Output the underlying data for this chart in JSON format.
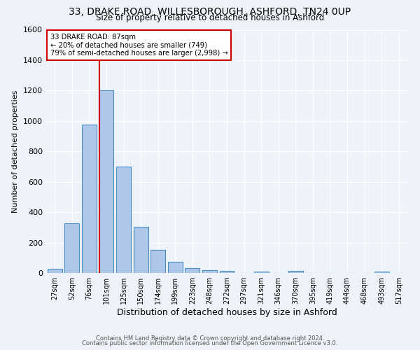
{
  "title_line1": "33, DRAKE ROAD, WILLESBOROUGH, ASHFORD, TN24 0UP",
  "title_line2": "Size of property relative to detached houses in Ashford",
  "xlabel": "Distribution of detached houses by size in Ashford",
  "ylabel": "Number of detached properties",
  "footnote1": "Contains HM Land Registry data © Crown copyright and database right 2024.",
  "footnote2": "Contains public sector information licensed under the Open Government Licence v3.0.",
  "bar_labels": [
    "27sqm",
    "52sqm",
    "76sqm",
    "101sqm",
    "125sqm",
    "150sqm",
    "174sqm",
    "199sqm",
    "223sqm",
    "248sqm",
    "272sqm",
    "297sqm",
    "321sqm",
    "346sqm",
    "370sqm",
    "395sqm",
    "419sqm",
    "444sqm",
    "468sqm",
    "493sqm",
    "517sqm"
  ],
  "bar_values": [
    27,
    325,
    975,
    1200,
    700,
    305,
    153,
    75,
    30,
    20,
    13,
    0,
    10,
    0,
    13,
    0,
    0,
    0,
    0,
    10,
    0
  ],
  "bar_color": "#aec6e8",
  "bar_edge_color": "#4a90c4",
  "ylim": [
    0,
    1600
  ],
  "yticks": [
    0,
    200,
    400,
    600,
    800,
    1000,
    1200,
    1400,
    1600
  ],
  "property_label": "33 DRAKE ROAD: 87sqm",
  "annotation_line1": "← 20% of detached houses are smaller (749)",
  "annotation_line2": "79% of semi-detached houses are larger (2,998) →",
  "vline_x_index": 2.6,
  "background_color": "#eef2f9",
  "grid_color": "#ffffff",
  "annotation_box_color": "#ffffff",
  "annotation_box_edge": "#cc0000",
  "vline_color": "#cc0000"
}
